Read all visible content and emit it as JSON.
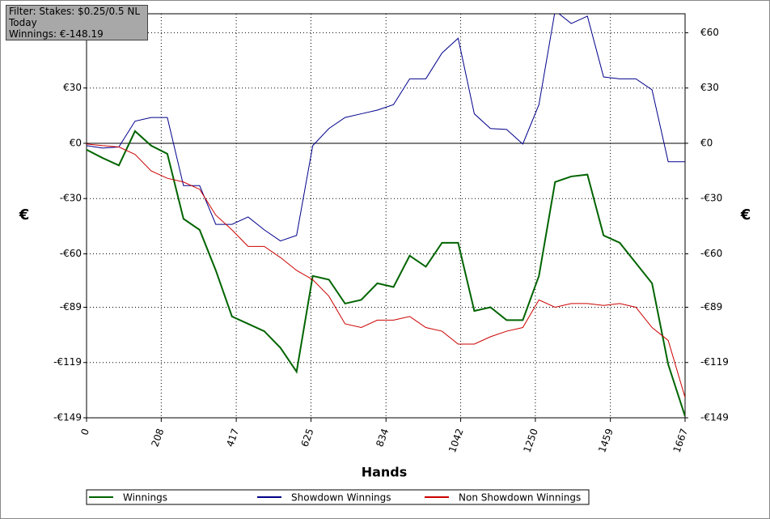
{
  "filter": {
    "lines": [
      "Filter: Stakes: $0.25/0.5 NL",
      "Today",
      "Winnings: €-148.19"
    ]
  },
  "chart_data": {
    "type": "line",
    "xlabel": "Hands",
    "ylabel": "€",
    "x": [
      0,
      45,
      90,
      135,
      180,
      225,
      270,
      315,
      360,
      405,
      450,
      495,
      540,
      585,
      630,
      675,
      720,
      765,
      810,
      855,
      900,
      945,
      990,
      1035,
      1080,
      1125,
      1170,
      1215,
      1260,
      1305,
      1350,
      1395,
      1440,
      1485,
      1530,
      1575,
      1620,
      1667
    ],
    "series": [
      {
        "name": "Winnings",
        "color": "#006400",
        "values": [
          -3.5,
          -8,
          -12,
          6.6,
          -1.3,
          -5.7,
          -41,
          -47,
          -69,
          -94,
          -98,
          -102,
          -111,
          -124,
          -72,
          -74,
          -87,
          -85,
          -76,
          -78,
          -61,
          -67,
          -54,
          -54,
          -91,
          -89,
          -96,
          -96,
          -72,
          -21,
          -18,
          -17,
          -50,
          -54,
          -65,
          -76,
          -120,
          -148.19
        ]
      },
      {
        "name": "Showdown Winnings",
        "color": "#00008b",
        "values": [
          -1.3,
          -2.6,
          -2,
          12,
          14,
          14,
          -23,
          -23,
          -44,
          -44,
          -40,
          -47,
          -53,
          -50,
          -1.3,
          8,
          14,
          16,
          18,
          21,
          35,
          35,
          49,
          57,
          16,
          8,
          7.5,
          -0.4,
          21,
          72,
          65,
          69,
          36,
          35,
          35,
          29,
          -10,
          -10
        ]
      },
      {
        "name": "Non Showdown Winnings",
        "color": "#cc0000",
        "values": [
          -0.4,
          -1.3,
          -2,
          -6,
          -15,
          -19,
          -21,
          -25,
          -39,
          -47,
          -56,
          -56,
          -62,
          -69,
          -74,
          -83,
          -98,
          -100,
          -96,
          -96,
          -94,
          -100,
          -102,
          -109,
          -109,
          -105,
          -102,
          -100,
          -85,
          -89,
          -87,
          -87,
          -88,
          -87,
          -89,
          -100,
          -107,
          -138
        ]
      }
    ],
    "xlim": [
      0,
      1667
    ],
    "xticks": [
      0,
      208,
      417,
      625,
      834,
      1042,
      1250,
      1459,
      1667
    ],
    "ylim": [
      -149,
      70.3
    ],
    "yticks": [
      {
        "value": -149,
        "label": "-€149"
      },
      {
        "value": -119,
        "label": "-€119"
      },
      {
        "value": -89,
        "label": "-€89"
      },
      {
        "value": -60,
        "label": "-€60"
      },
      {
        "value": -30,
        "label": "-€30"
      },
      {
        "value": 0,
        "label": "€0"
      },
      {
        "value": 30,
        "label": "€30"
      },
      {
        "value": 60,
        "label": "€60"
      }
    ],
    "grid": true
  }
}
